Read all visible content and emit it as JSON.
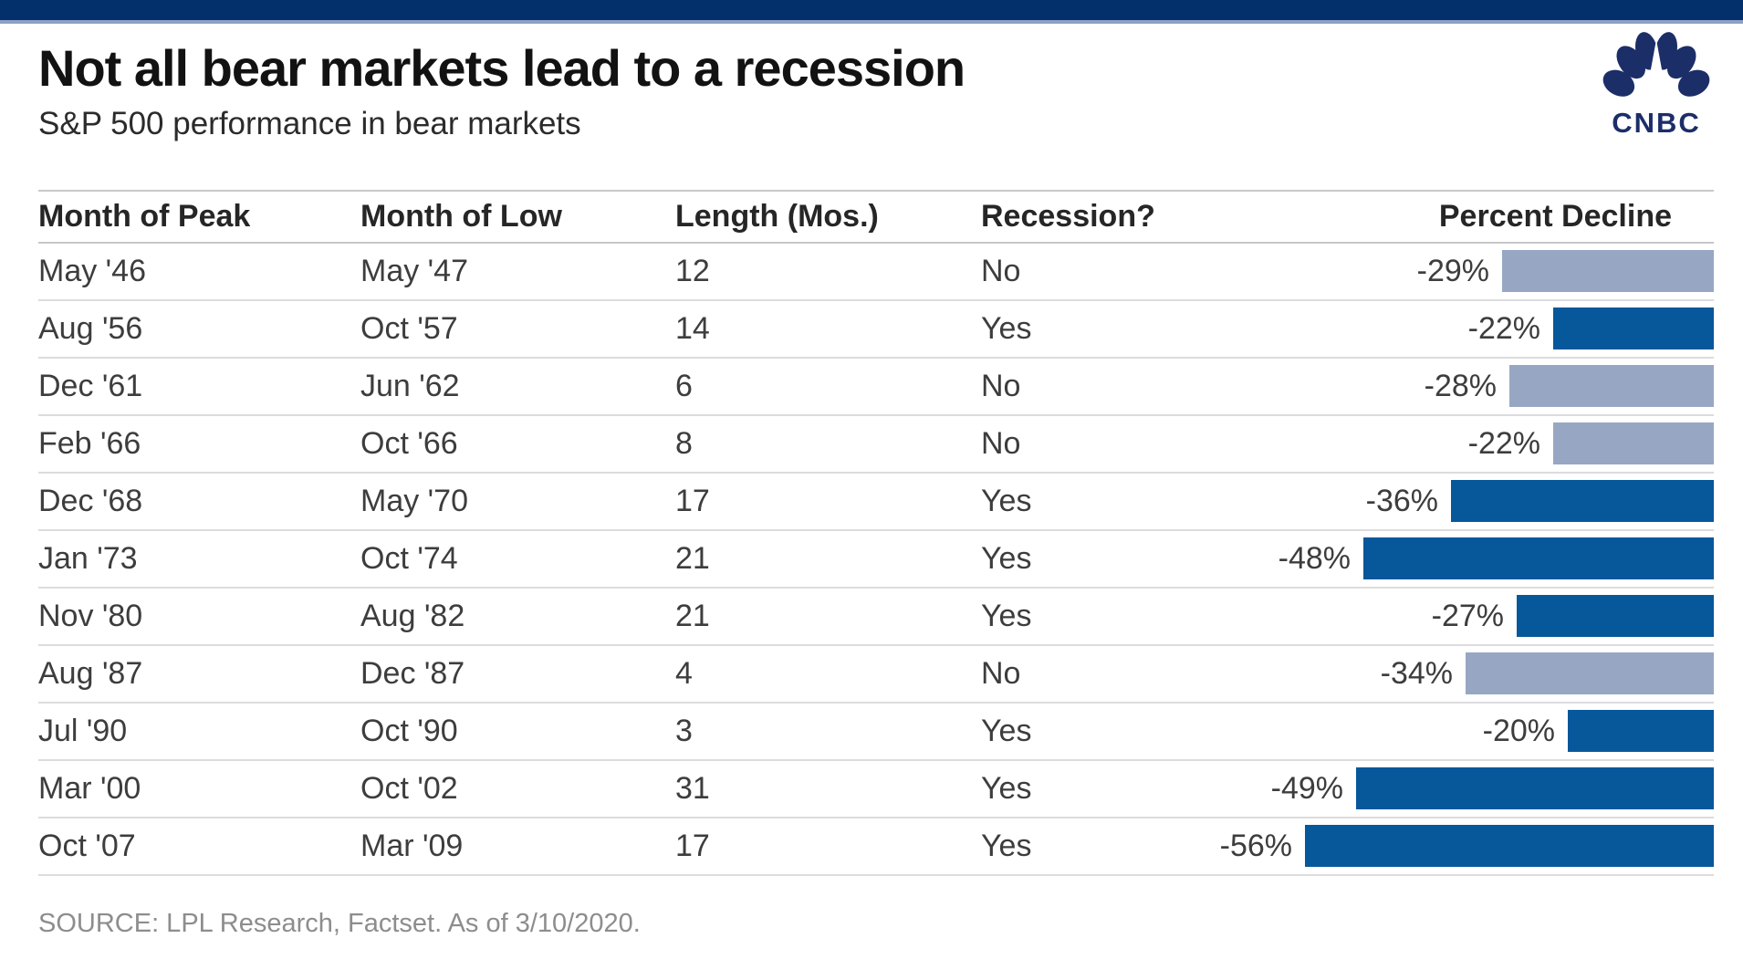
{
  "header": {
    "title": "Not all bear markets lead to a recession",
    "subtitle": "S&P 500 performance in bear markets",
    "logo_text": "CNBC"
  },
  "source": "SOURCE: LPL Research, Factset. As of 3/10/2020.",
  "colors": {
    "top_bar": "#032f6b",
    "top_bar_accent": "#8ca1c4",
    "bar_recession_yes": "#07579b",
    "bar_recession_no": "#97a7c3",
    "logo_navy": "#1b2e68"
  },
  "chart_data": {
    "type": "table",
    "title": "Not all bear markets lead to a recession",
    "subtitle": "S&P 500 performance in bear markets",
    "columns": [
      "Month of Peak",
      "Month of Low",
      "Length (Mos.)",
      "Recession?",
      "Percent Decline"
    ],
    "bar_column": "Percent Decline",
    "bar_axis_max": 56,
    "bar_color_rule": "recession Yes = dark navy, No = light gray-blue",
    "rows": [
      {
        "peak": "May '46",
        "low": "May '47",
        "length_months": 12,
        "recession": "No",
        "decline_pct": -29,
        "decline_label": "-29%"
      },
      {
        "peak": "Aug '56",
        "low": "Oct '57",
        "length_months": 14,
        "recession": "Yes",
        "decline_pct": -22,
        "decline_label": "-22%"
      },
      {
        "peak": "Dec '61",
        "low": "Jun '62",
        "length_months": 6,
        "recession": "No",
        "decline_pct": -28,
        "decline_label": "-28%"
      },
      {
        "peak": "Feb '66",
        "low": "Oct '66",
        "length_months": 8,
        "recession": "No",
        "decline_pct": -22,
        "decline_label": "-22%"
      },
      {
        "peak": "Dec '68",
        "low": "May '70",
        "length_months": 17,
        "recession": "Yes",
        "decline_pct": -36,
        "decline_label": "-36%"
      },
      {
        "peak": "Jan '73",
        "low": "Oct '74",
        "length_months": 21,
        "recession": "Yes",
        "decline_pct": -48,
        "decline_label": "-48%"
      },
      {
        "peak": "Nov '80",
        "low": "Aug '82",
        "length_months": 21,
        "recession": "Yes",
        "decline_pct": -27,
        "decline_label": "-27%"
      },
      {
        "peak": "Aug '87",
        "low": "Dec '87",
        "length_months": 4,
        "recession": "No",
        "decline_pct": -34,
        "decline_label": "-34%"
      },
      {
        "peak": "Jul '90",
        "low": "Oct '90",
        "length_months": 3,
        "recession": "Yes",
        "decline_pct": -20,
        "decline_label": "-20%"
      },
      {
        "peak": "Mar '00",
        "low": "Oct '02",
        "length_months": 31,
        "recession": "Yes",
        "decline_pct": -49,
        "decline_label": "-49%"
      },
      {
        "peak": "Oct '07",
        "low": "Mar '09",
        "length_months": 17,
        "recession": "Yes",
        "decline_pct": -56,
        "decline_label": "-56%"
      }
    ]
  }
}
